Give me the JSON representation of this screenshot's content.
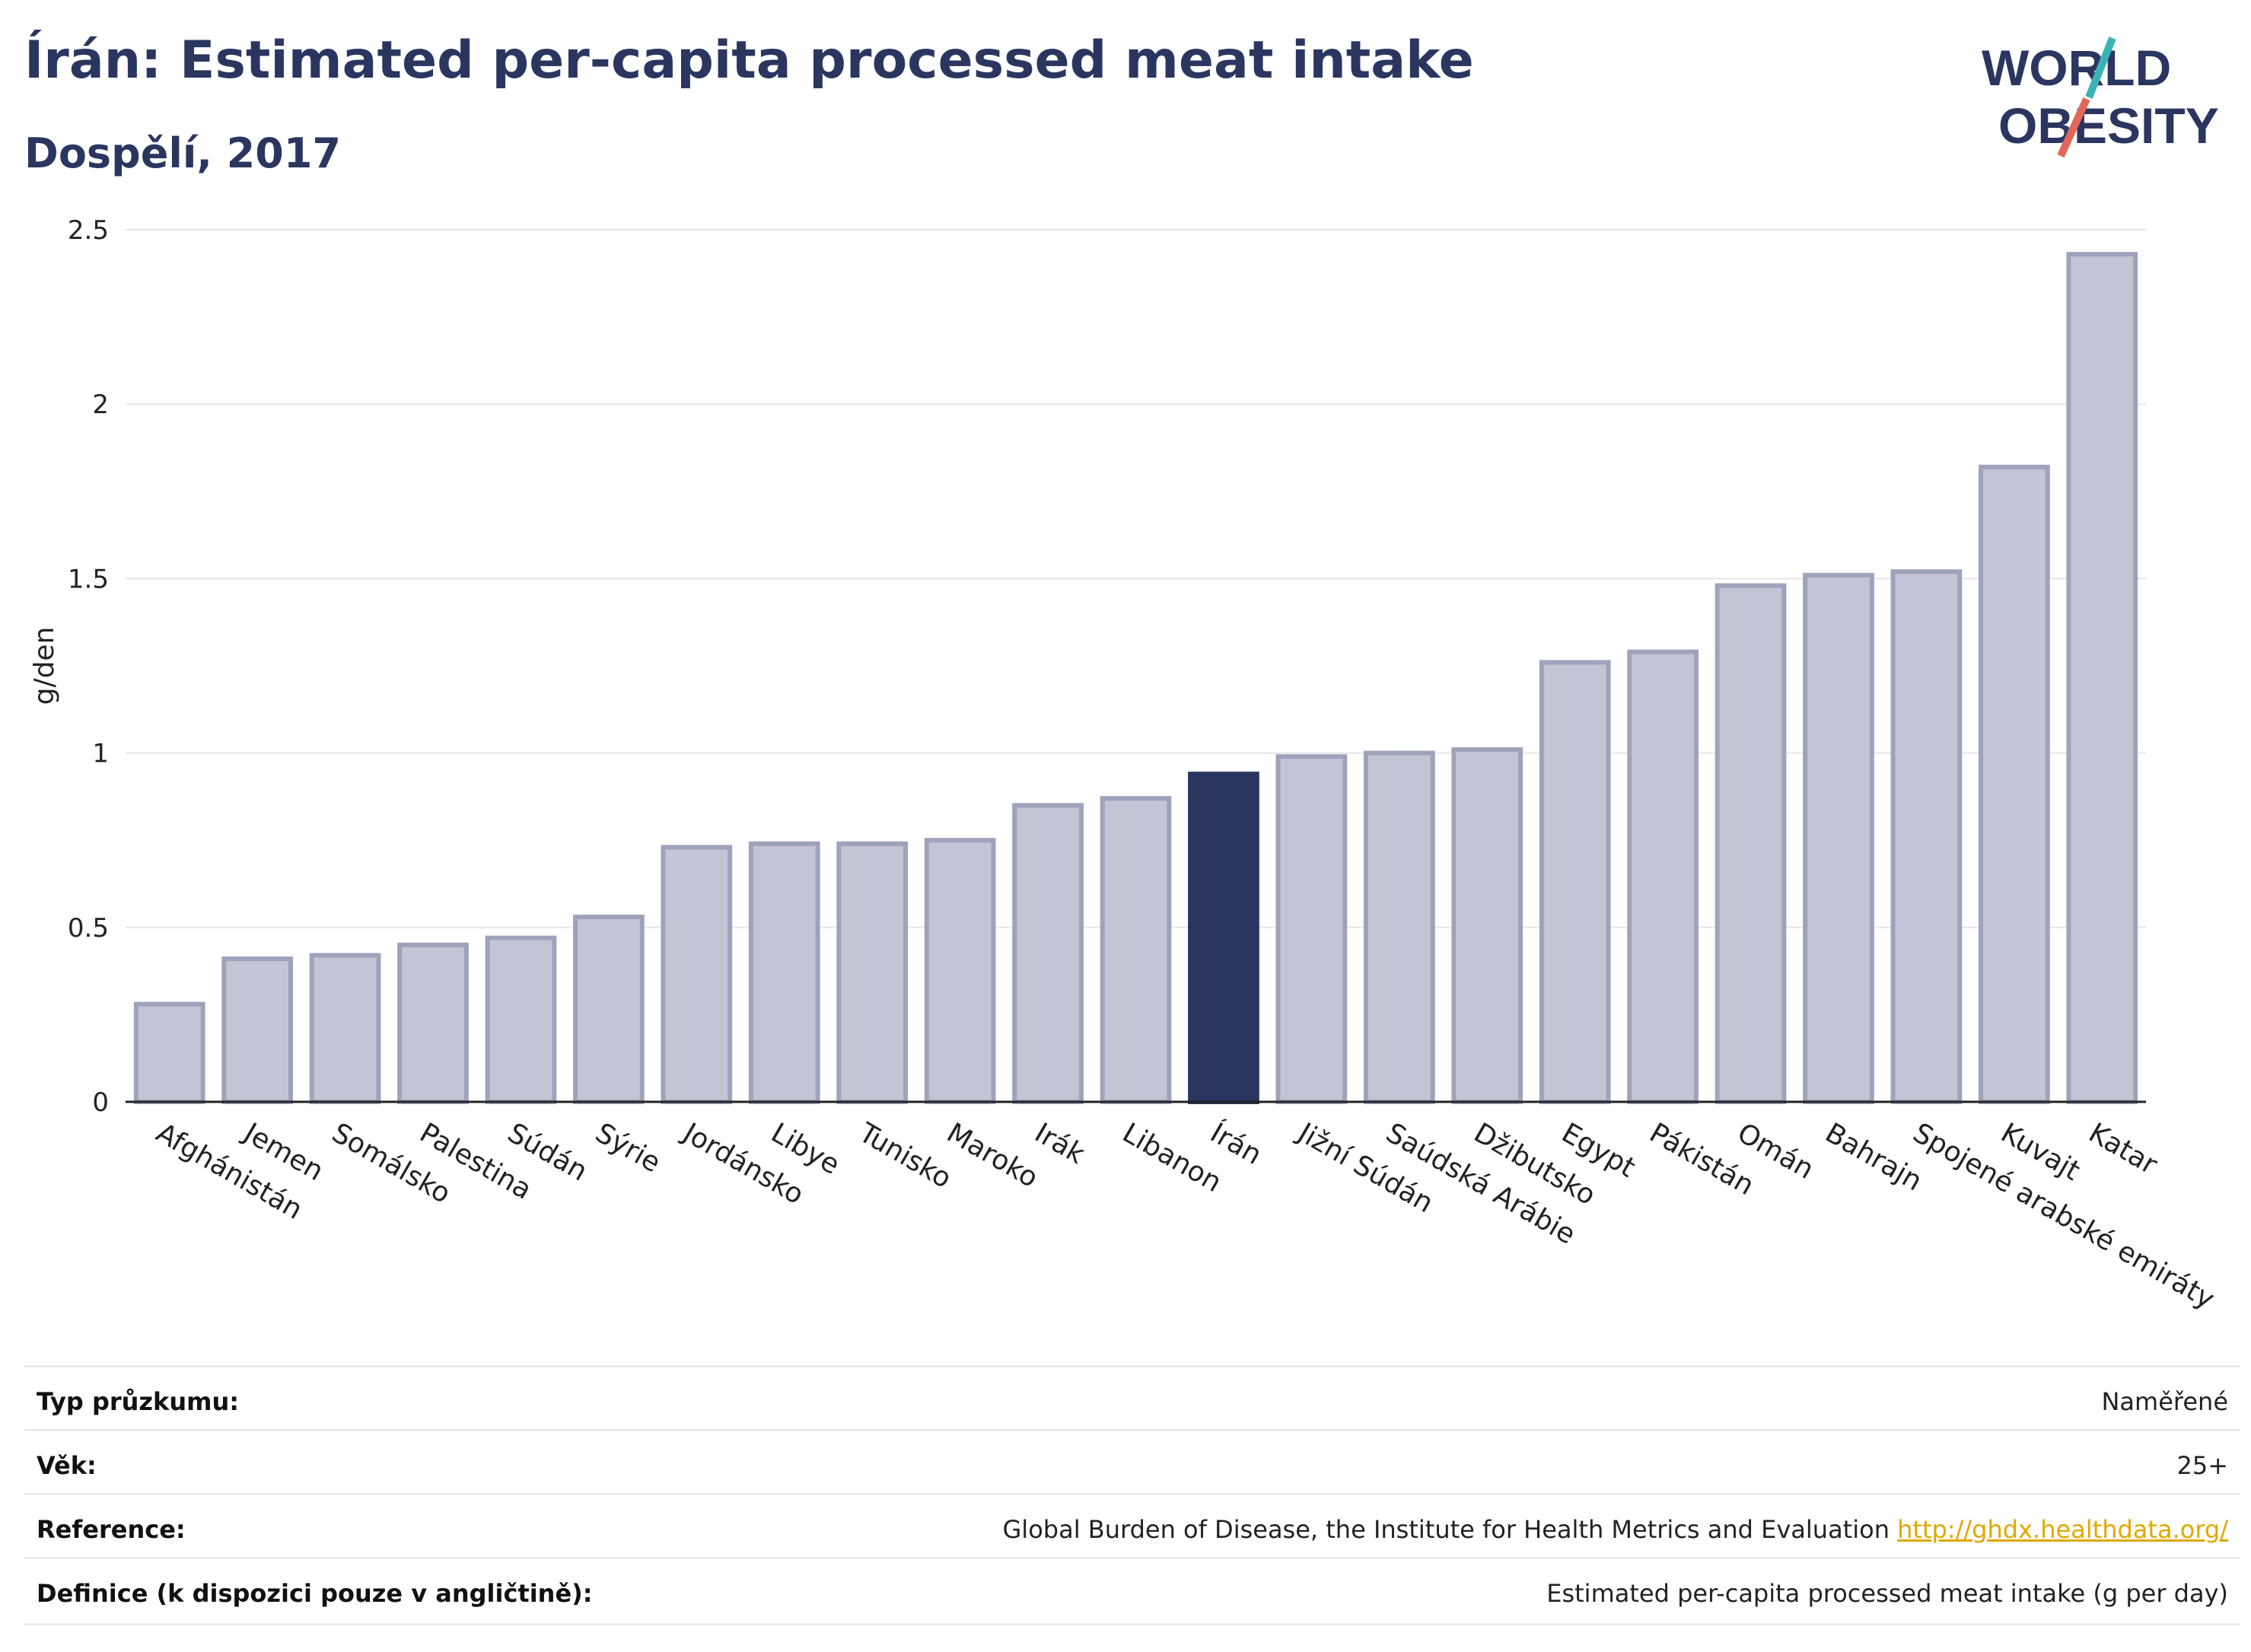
{
  "header": {
    "title": "Írán: Estimated per-capita processed meat intake",
    "subtitle": "Dospělí, 2017"
  },
  "logo": {
    "line1": "WORLD",
    "line2": "OBESITY",
    "accent_teal": "#3ab3b5",
    "accent_red": "#e0675a",
    "text_color": "#2b3660"
  },
  "chart_data": {
    "type": "bar",
    "title": "Írán: Estimated per-capita processed meat intake",
    "subtitle": "Dospělí, 2017",
    "ylabel": "g/den",
    "xlabel": "",
    "ylim": [
      0,
      2.5
    ],
    "yticks": [
      0,
      0.5,
      1,
      1.5,
      2,
      2.5
    ],
    "ytick_labels": [
      "0",
      "0.5",
      "1",
      "1.5",
      "2",
      "2.5"
    ],
    "grid": true,
    "highlight": "Írán",
    "colors": {
      "bar": "#c2c5d3",
      "bar_border": "#9ea3bb",
      "highlight": "#2b3660"
    },
    "categories": [
      "Afghánistán",
      "Jemen",
      "Somálsko",
      "Palestina",
      "Súdán",
      "Sýrie",
      "Jordánsko",
      "Libye",
      "Tunisko",
      "Maroko",
      "Irák",
      "Libanon",
      "Írán",
      "Jižní Súdán",
      "Saúdská Arábie",
      "Džibutsko",
      "Egypt",
      "Pákistán",
      "Omán",
      "Bahrajn",
      "Spojené arabské emiráty",
      "Kuvajt",
      "Katar"
    ],
    "values": [
      0.28,
      0.41,
      0.42,
      0.45,
      0.47,
      0.53,
      0.73,
      0.74,
      0.74,
      0.75,
      0.85,
      0.87,
      0.94,
      0.99,
      1.0,
      1.01,
      1.26,
      1.29,
      1.48,
      1.51,
      1.52,
      1.82,
      2.43
    ]
  },
  "info": [
    {
      "label": "Typ průzkumu:",
      "value": "Naměřené"
    },
    {
      "label": "Věk:",
      "value": "25+"
    },
    {
      "label": "Reference:",
      "value": "Global Burden of Disease, the Institute for Health Metrics and Evaluation",
      "link": "http://ghdx.healthdata.org/"
    },
    {
      "label": "Definice (k dispozici pouze v angličtině):",
      "value": "Estimated per-capita processed meat intake (g per day)"
    }
  ]
}
